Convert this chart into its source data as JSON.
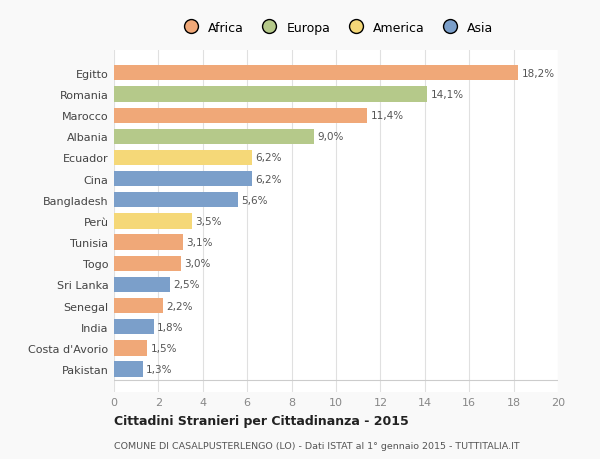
{
  "countries": [
    "Egitto",
    "Romania",
    "Marocco",
    "Albania",
    "Ecuador",
    "Cina",
    "Bangladesh",
    "Perù",
    "Tunisia",
    "Togo",
    "Sri Lanka",
    "Senegal",
    "India",
    "Costa d'Avorio",
    "Pakistan"
  ],
  "values": [
    18.2,
    14.1,
    11.4,
    9.0,
    6.2,
    6.2,
    5.6,
    3.5,
    3.1,
    3.0,
    2.5,
    2.2,
    1.8,
    1.5,
    1.3
  ],
  "labels": [
    "18,2%",
    "14,1%",
    "11,4%",
    "9,0%",
    "6,2%",
    "6,2%",
    "5,6%",
    "3,5%",
    "3,1%",
    "3,0%",
    "2,5%",
    "2,2%",
    "1,8%",
    "1,5%",
    "1,3%"
  ],
  "continents": [
    "Africa",
    "Europa",
    "Africa",
    "Europa",
    "America",
    "Asia",
    "Asia",
    "America",
    "Africa",
    "Africa",
    "Asia",
    "Africa",
    "Asia",
    "Africa",
    "Asia"
  ],
  "colors": {
    "Africa": "#F0A878",
    "Europa": "#B5C98A",
    "America": "#F5D878",
    "Asia": "#7B9FCA"
  },
  "legend_order": [
    "Africa",
    "Europa",
    "America",
    "Asia"
  ],
  "xlim": [
    0,
    20
  ],
  "xticks": [
    0,
    2,
    4,
    6,
    8,
    10,
    12,
    14,
    16,
    18,
    20
  ],
  "title": "Cittadini Stranieri per Cittadinanza - 2015",
  "subtitle": "COMUNE DI CASALPUSTERLENGO (LO) - Dati ISTAT al 1° gennaio 2015 - TUTTITALIA.IT",
  "background_color": "#f9f9f9",
  "bar_background": "#ffffff",
  "grid_color": "#e0e0e0"
}
